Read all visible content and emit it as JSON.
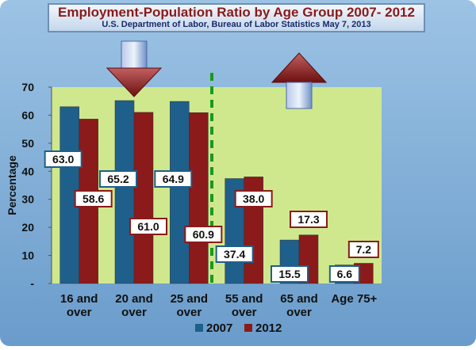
{
  "chart_data": {
    "type": "bar",
    "title": "Employment-Population Ratio by Age Group 2007- 2012",
    "subtitle": "U.S. Department of Labor, Bureau of Labor Statistics May 7, 2013",
    "ylabel": "Percentage",
    "xlabel": "",
    "ylim": [
      0,
      70
    ],
    "yticks": [
      0,
      10,
      20,
      30,
      40,
      50,
      60,
      70
    ],
    "ytick_labels": [
      "-",
      "10",
      "20",
      "30",
      "40",
      "50",
      "60",
      "70"
    ],
    "categories": [
      [
        "16 and",
        "over"
      ],
      [
        "20 and",
        "over"
      ],
      [
        "25 and",
        "over"
      ],
      [
        "55 and",
        "over"
      ],
      [
        "65 and",
        "over"
      ],
      [
        "Age 75+"
      ]
    ],
    "series": [
      {
        "name": "2007",
        "color": "#1f5f8b",
        "values": [
          63.0,
          65.2,
          64.9,
          37.4,
          15.5,
          6.6
        ],
        "labels": [
          "63.0",
          "65.2",
          "64.9",
          "37.4",
          "15.5",
          "6.6"
        ]
      },
      {
        "name": "2012",
        "color": "#8b1a1a",
        "values": [
          58.6,
          61.0,
          60.9,
          38.0,
          17.3,
          7.2
        ],
        "labels": [
          "58.6",
          "61.0",
          "60.9",
          "38.0",
          "17.3",
          "7.2"
        ]
      }
    ],
    "grid": false,
    "legend": "bottom",
    "annotations": {
      "divider": "dashed vertical line between 25 and over and 55 and over",
      "down_arrow": "over 20 and over",
      "up_arrow": "over 65 and over"
    }
  },
  "colors": {
    "frame": "#7aa8d2",
    "plot_bg": "#cfe88e",
    "divider": "#1a9a1a",
    "arrow_red": "#8b1a1a",
    "arrow_blue": "#6f8fc7"
  }
}
